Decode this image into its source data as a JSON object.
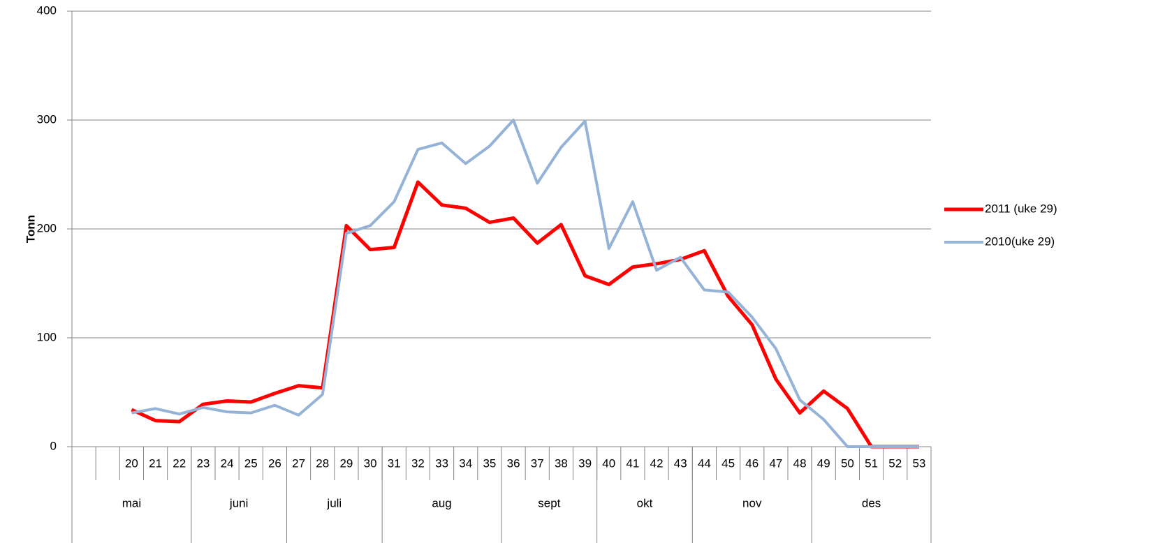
{
  "chart_data": {
    "type": "line",
    "y_label": "Tonn",
    "categories": [
      null,
      null,
      "20",
      "21",
      "22",
      "23",
      "24",
      "25",
      "26",
      "27",
      "28",
      "29",
      "30",
      "31",
      "32",
      "33",
      "34",
      "35",
      "36",
      "37",
      "38",
      "39",
      "40",
      "41",
      "42",
      "43",
      "44",
      "45",
      "46",
      "47",
      "48",
      "49",
      "50",
      "51",
      "52",
      "53"
    ],
    "month_categories": [
      "mai",
      null,
      null,
      null,
      null,
      "juni",
      null,
      null,
      null,
      "juli",
      null,
      null,
      null,
      "aug",
      null,
      null,
      null,
      null,
      "sept",
      null,
      null,
      null,
      "okt",
      null,
      null,
      null,
      "nov",
      null,
      null,
      null,
      null,
      "des",
      null,
      null,
      null,
      null
    ],
    "series": [
      {
        "name": "2011 (uke 29)",
        "color": "#ff0000",
        "values": [
          null,
          null,
          34,
          24,
          23,
          39,
          42,
          41,
          49,
          56,
          54,
          203,
          181,
          183,
          243,
          222,
          219,
          206,
          210,
          187,
          204,
          157,
          149,
          165,
          168,
          172,
          180,
          138,
          112,
          62,
          31,
          51,
          35,
          0,
          0,
          0
        ]
      },
      {
        "name": "2010(uke 29)",
        "color": "#95b3d7",
        "values": [
          null,
          null,
          31,
          35,
          30,
          36,
          32,
          31,
          38,
          29,
          48,
          196,
          203,
          225,
          273,
          279,
          260,
          276,
          300,
          242,
          275,
          299,
          182,
          225,
          162,
          174,
          144,
          142,
          119,
          90,
          43,
          25,
          0,
          0,
          0,
          0
        ]
      }
    ],
    "ylim": [
      0,
      400
    ],
    "yticks": [
      0,
      100,
      200,
      300,
      400
    ],
    "grid": true,
    "legend": "right"
  }
}
